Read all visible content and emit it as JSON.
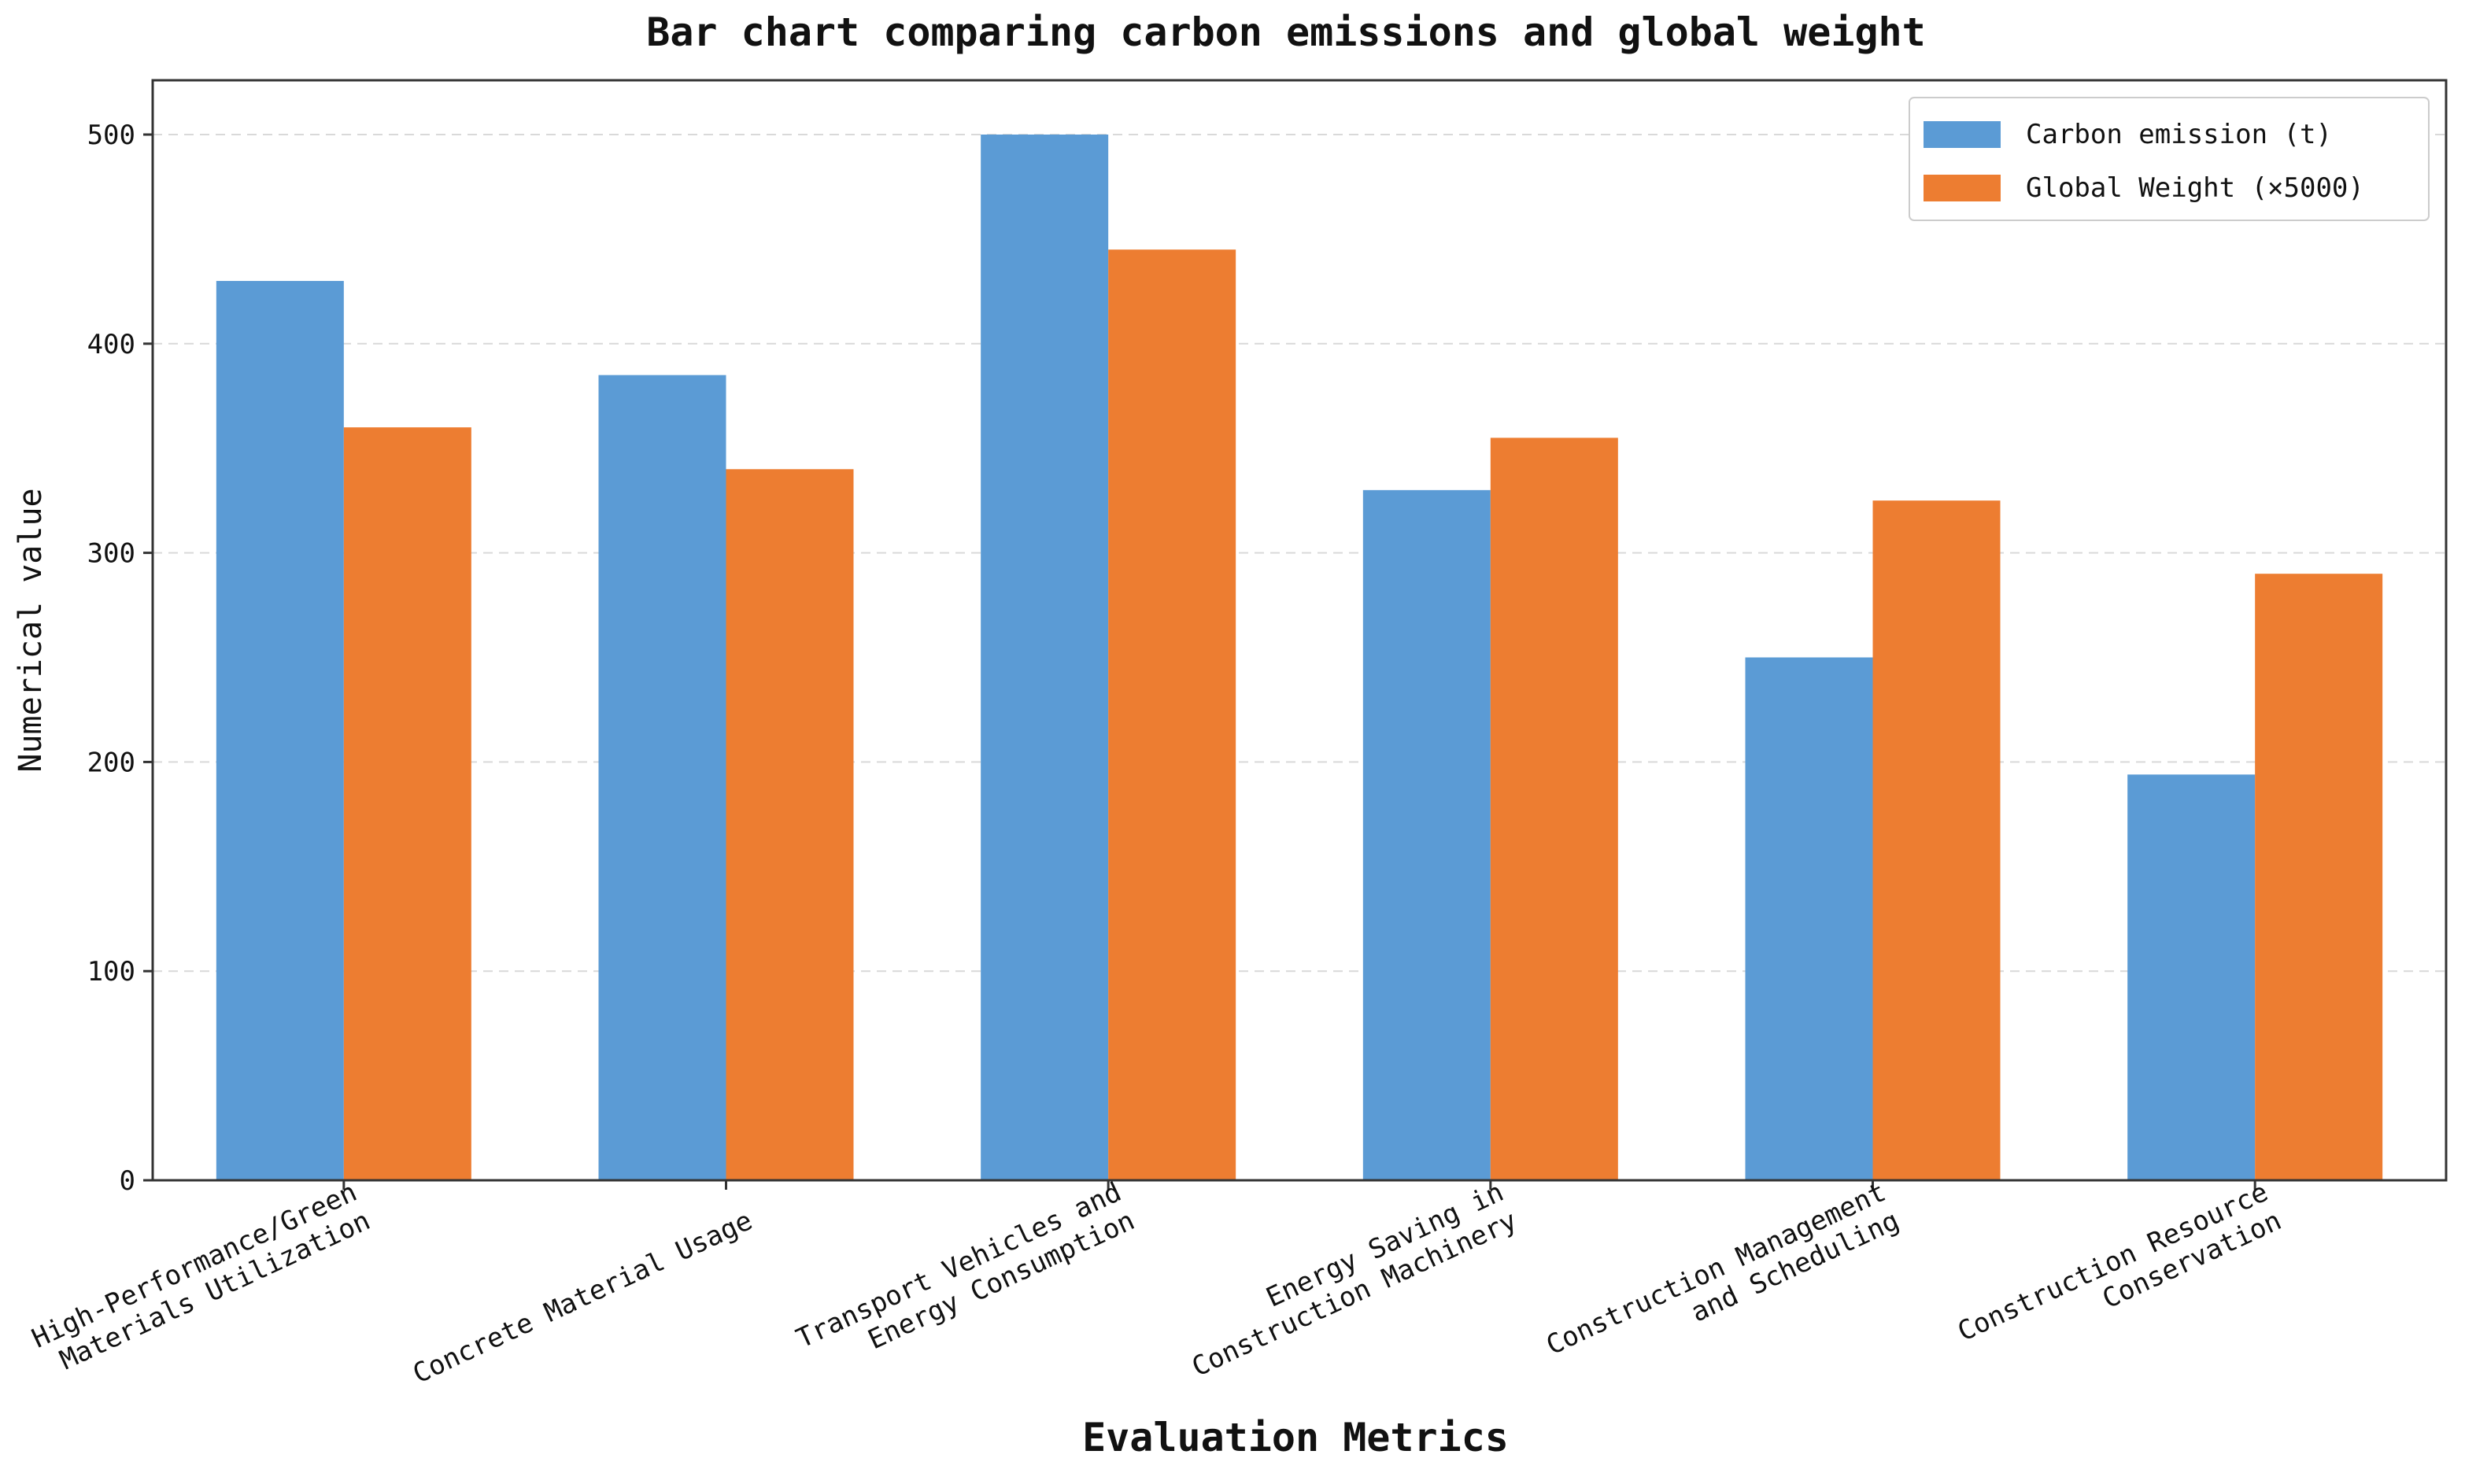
{
  "chart_data": {
    "type": "bar",
    "title": "Bar chart comparing carbon emissions and global weight",
    "xlabel": "Evaluation Metrics",
    "ylabel": "Numerical value",
    "categories": [
      [
        "High-Performance/Green",
        "Materials Utilization"
      ],
      [
        "Concrete Material Usage"
      ],
      [
        "Transport Vehicles and",
        "Energy Consumption"
      ],
      [
        "Energy Saving in",
        "Construction Machinery"
      ],
      [
        "Construction Management",
        "and Scheduling"
      ],
      [
        "Construction Resource",
        "Conservation"
      ]
    ],
    "series": [
      {
        "name": "Carbon emission (t)",
        "color": "#5b9bd5",
        "values": [
          430,
          385,
          500,
          330,
          250,
          194
        ]
      },
      {
        "name": "Global Weight (×5000)",
        "color": "#ed7d31",
        "values": [
          360,
          340,
          445,
          355,
          325,
          290
        ]
      }
    ],
    "ylim": [
      0,
      500
    ],
    "yticks": [
      0,
      100,
      200,
      300,
      400,
      500
    ],
    "grid": true,
    "legend_position": "top-right"
  }
}
